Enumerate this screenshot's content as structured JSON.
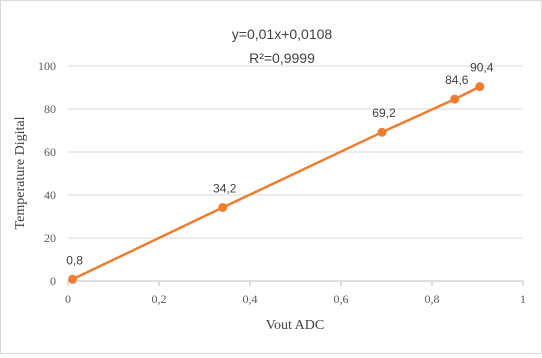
{
  "chart_data": {
    "type": "line",
    "title": "",
    "xlabel": "Vout ADC",
    "ylabel": "Temperature Digital",
    "xlim": [
      0,
      1
    ],
    "ylim": [
      0,
      100
    ],
    "xticks": [
      "0",
      "0,2",
      "0,4",
      "0,6",
      "0,8",
      "1"
    ],
    "yticks": [
      "0",
      "20",
      "40",
      "60",
      "80",
      "100"
    ],
    "grid": "horizontal",
    "trendline": {
      "equation": "y=0,01x+0,0108",
      "r_squared": "R²=0,9999"
    },
    "series": [
      {
        "color": "#ed7d31",
        "points": [
          {
            "x": 0.01,
            "y": 0.8,
            "label": "0,8"
          },
          {
            "x": 0.34,
            "y": 34.2,
            "label": "34,2"
          },
          {
            "x": 0.69,
            "y": 69.2,
            "label": "69,2"
          },
          {
            "x": 0.85,
            "y": 84.6,
            "label": "84,6"
          },
          {
            "x": 0.905,
            "y": 90.4,
            "label": "90,4"
          }
        ]
      }
    ]
  }
}
